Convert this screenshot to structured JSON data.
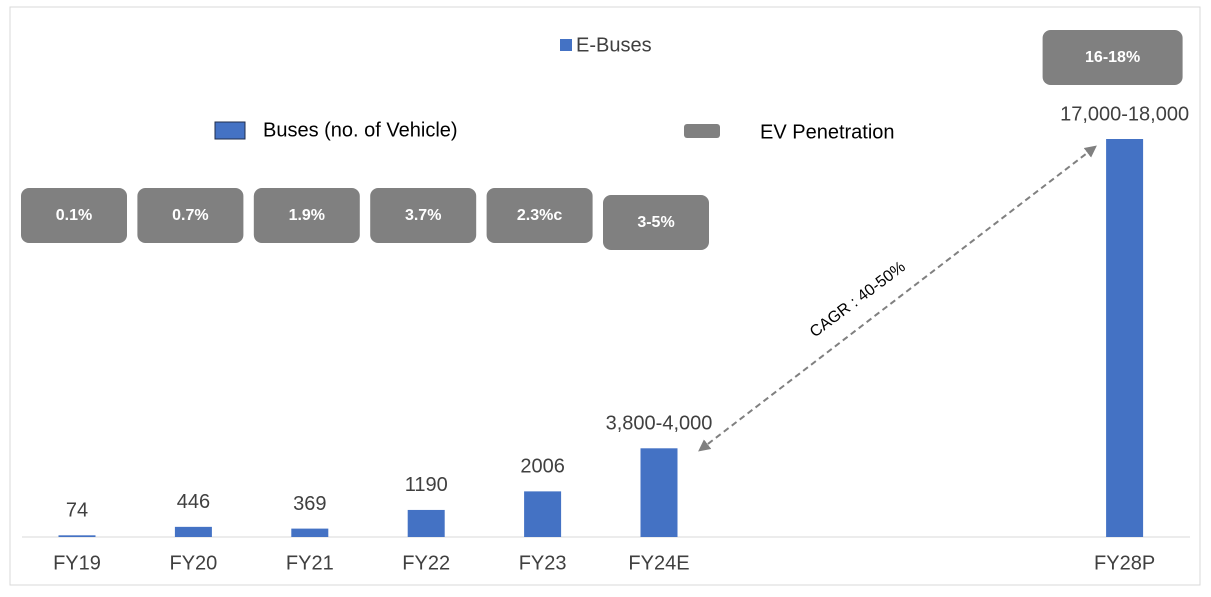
{
  "chart_data": {
    "type": "bar",
    "title": "E-Buses",
    "categories": [
      "FY19",
      "FY20",
      "FY21",
      "FY22",
      "FY23",
      "FY24E",
      null,
      null,
      null,
      "FY28P"
    ],
    "series": [
      {
        "name": "Buses (no. of Vehicle)",
        "color": "#4472c4",
        "values": [
          74,
          446,
          369,
          1190,
          2006,
          3900,
          null,
          null,
          null,
          17500
        ],
        "value_labels": [
          "74",
          "446",
          "369",
          "1190",
          "2006",
          "3,800-4,000",
          null,
          null,
          null,
          "17,000-18,000"
        ]
      }
    ],
    "ev_penetration": {
      "name": "EV Penetration",
      "color": "#808080",
      "labels": [
        "0.1%",
        "0.7%",
        "1.9%",
        "3.7%",
        "2.3%c",
        "3-5%",
        null,
        null,
        null,
        "16-18%"
      ]
    },
    "annotation": "CAGR : 40-50%"
  }
}
